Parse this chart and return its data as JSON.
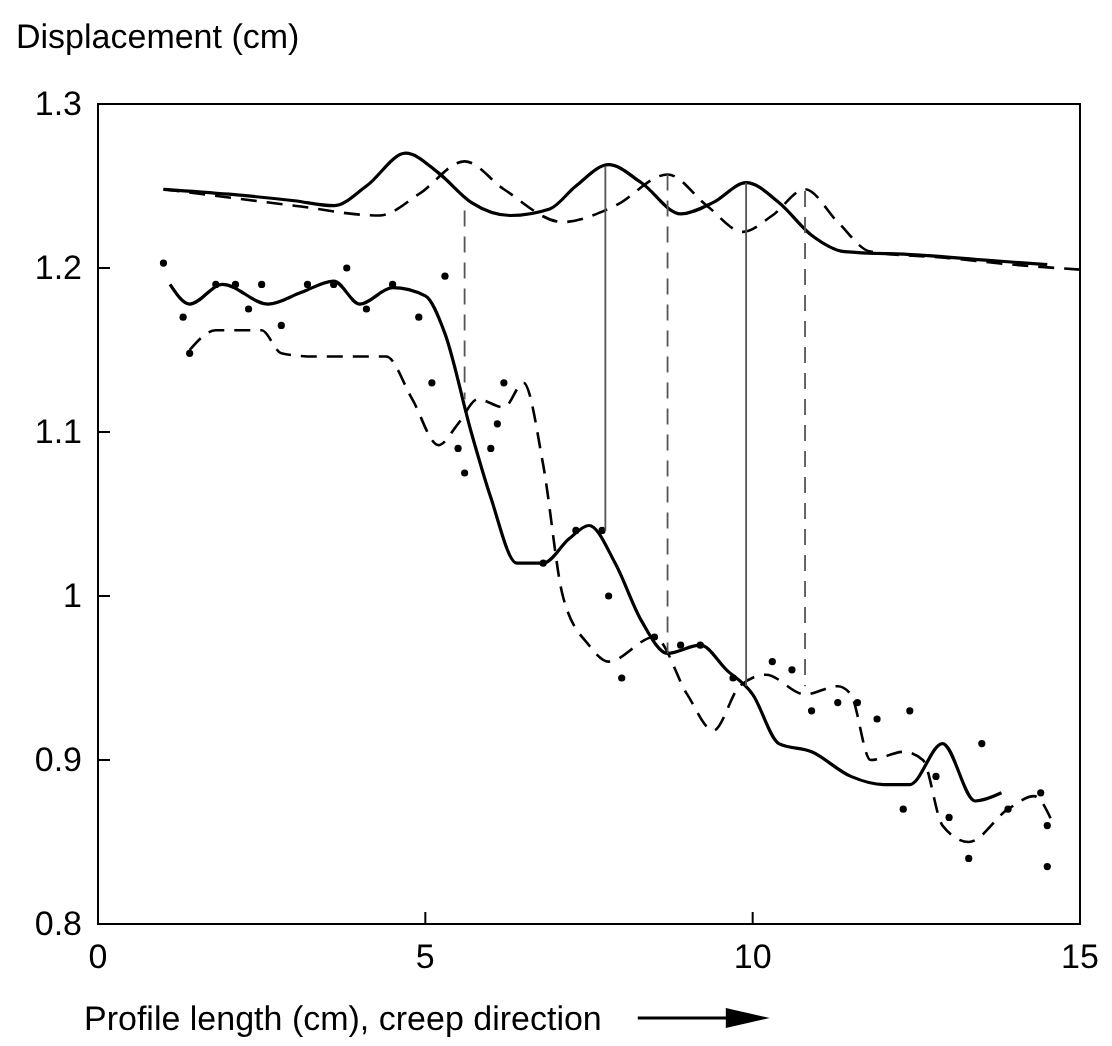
{
  "chart_data": {
    "type": "line",
    "xlabel": "Profile length (cm),  creep direction",
    "ylabel": "Displacement (cm)",
    "xlim": [
      0,
      15
    ],
    "xticks": [
      0,
      5,
      10,
      15
    ],
    "ylim": [
      0.8,
      1.3
    ],
    "yticks": [
      0.8,
      0.9,
      1.0,
      1.1,
      1.2,
      1.3
    ],
    "series": [
      {
        "color": "#000000",
        "line_style": "solid",
        "marker": "none",
        "x": [
          1,
          2,
          3,
          3.6,
          4.1,
          4.7,
          5.2,
          5.7,
          6.3,
          6.9,
          7.3,
          7.8,
          8.3,
          8.9,
          9.4,
          9.9,
          10.4,
          10.9,
          11.4,
          12.5,
          13.5,
          14.5
        ],
        "values": [
          1.248,
          1.245,
          1.241,
          1.238,
          1.25,
          1.27,
          1.258,
          1.24,
          1.232,
          1.236,
          1.25,
          1.263,
          1.252,
          1.233,
          1.24,
          1.252,
          1.24,
          1.22,
          1.21,
          1.208,
          1.205,
          1.202
        ]
      },
      {
        "color": "#000000",
        "line_style": "dashed",
        "marker": "none",
        "x": [
          1,
          2,
          3,
          4.3,
          4.9,
          5.6,
          6.2,
          7.1,
          7.9,
          8.7,
          9.3,
          9.85,
          10.3,
          10.8,
          11.3,
          11.8,
          13,
          14,
          15
        ],
        "values": [
          1.248,
          1.243,
          1.238,
          1.232,
          1.245,
          1.265,
          1.248,
          1.228,
          1.238,
          1.257,
          1.238,
          1.222,
          1.232,
          1.248,
          1.228,
          1.21,
          1.206,
          1.202,
          1.199
        ]
      },
      {
        "color": "#000000",
        "line_style": "solid",
        "marker": "none",
        "x": [
          1.1,
          1.4,
          1.9,
          2.6,
          3.1,
          3.6,
          4.0,
          4.5,
          5.0,
          5.3,
          5.7,
          6.0,
          6.4,
          6.8,
          7.2,
          7.5,
          7.9,
          8.3,
          8.7,
          9.2,
          9.6,
          10.0,
          10.4,
          10.9,
          11.5,
          12.0,
          12.4,
          12.9,
          13.4,
          13.8
        ],
        "values": [
          1.19,
          1.178,
          1.19,
          1.178,
          1.185,
          1.192,
          1.178,
          1.188,
          1.183,
          1.16,
          1.1,
          1.06,
          1.02,
          1.02,
          1.035,
          1.043,
          1.02,
          0.985,
          0.965,
          0.97,
          0.955,
          0.94,
          0.91,
          0.905,
          0.89,
          0.885,
          0.885,
          0.91,
          0.875,
          0.88
        ]
      },
      {
        "color": "#000000",
        "line_style": "dashed",
        "marker": "none",
        "x": [
          1.4,
          1.8,
          2.5,
          2.8,
          3.3,
          4.4,
          4.8,
          5.2,
          5.5,
          5.8,
          6.2,
          6.5,
          6.8,
          7.1,
          7.5,
          7.8,
          8.5,
          9.0,
          9.4,
          9.8,
          10.2,
          10.8,
          11.3,
          11.5,
          11.8,
          12.3,
          12.6,
          12.9,
          13.3,
          13.9,
          14.3,
          14.6
        ],
        "values": [
          1.15,
          1.162,
          1.162,
          1.148,
          1.146,
          1.146,
          1.12,
          1.092,
          1.105,
          1.12,
          1.115,
          1.13,
          1.08,
          1.0,
          0.97,
          0.96,
          0.975,
          0.94,
          0.918,
          0.945,
          0.952,
          0.94,
          0.945,
          0.94,
          0.9,
          0.905,
          0.9,
          0.86,
          0.85,
          0.87,
          0.878,
          0.86
        ]
      },
      {
        "type": "scatter",
        "color": "#000000",
        "marker": "circle",
        "x": [
          1,
          1.3,
          1.4,
          1.8,
          2.1,
          2.3,
          2.5,
          2.8,
          3.2,
          3.6,
          3.8,
          4.1,
          4.5,
          4.9,
          5.1,
          5.3,
          5.5,
          5.6,
          6.0,
          6.1,
          6.2,
          6.8,
          7.3,
          7.7,
          7.8,
          8.0,
          8.5,
          8.9,
          9.2,
          9.7,
          10.3,
          10.6,
          10.9,
          11.3,
          11.6,
          11.9,
          12.3,
          12.4,
          12.8,
          13.0,
          13.3,
          13.5,
          13.9,
          14.4,
          14.5,
          14.5
        ],
        "values": [
          1.203,
          1.17,
          1.148,
          1.19,
          1.19,
          1.175,
          1.19,
          1.165,
          1.19,
          1.19,
          1.2,
          1.175,
          1.19,
          1.17,
          1.13,
          1.195,
          1.09,
          1.075,
          1.09,
          1.105,
          1.13,
          1.02,
          1.04,
          1.04,
          1.0,
          0.95,
          0.975,
          0.97,
          0.97,
          0.95,
          0.96,
          0.955,
          0.93,
          0.935,
          0.935,
          0.925,
          0.87,
          0.93,
          0.89,
          0.865,
          0.84,
          0.91,
          0.87,
          0.88,
          0.86,
          0.835
        ]
      },
      {
        "color": "#555555",
        "line_style": "dashed",
        "marker": "none",
        "x": [
          5.6,
          5.6
        ],
        "values": [
          1.235,
          1.12
        ]
      },
      {
        "color": "#555555",
        "line_style": "solid",
        "marker": "none",
        "x": [
          7.75,
          7.75
        ],
        "values": [
          1.262,
          1.04
        ]
      },
      {
        "color": "#555555",
        "line_style": "dashed",
        "marker": "none",
        "x": [
          8.7,
          8.7
        ],
        "values": [
          1.257,
          0.965
        ]
      },
      {
        "color": "#555555",
        "line_style": "solid",
        "marker": "none",
        "x": [
          9.9,
          9.9
        ],
        "values": [
          1.252,
          0.945
        ]
      },
      {
        "color": "#555555",
        "line_style": "dashed",
        "marker": "none",
        "x": [
          10.8,
          10.8
        ],
        "values": [
          1.247,
          0.945
        ]
      }
    ]
  }
}
